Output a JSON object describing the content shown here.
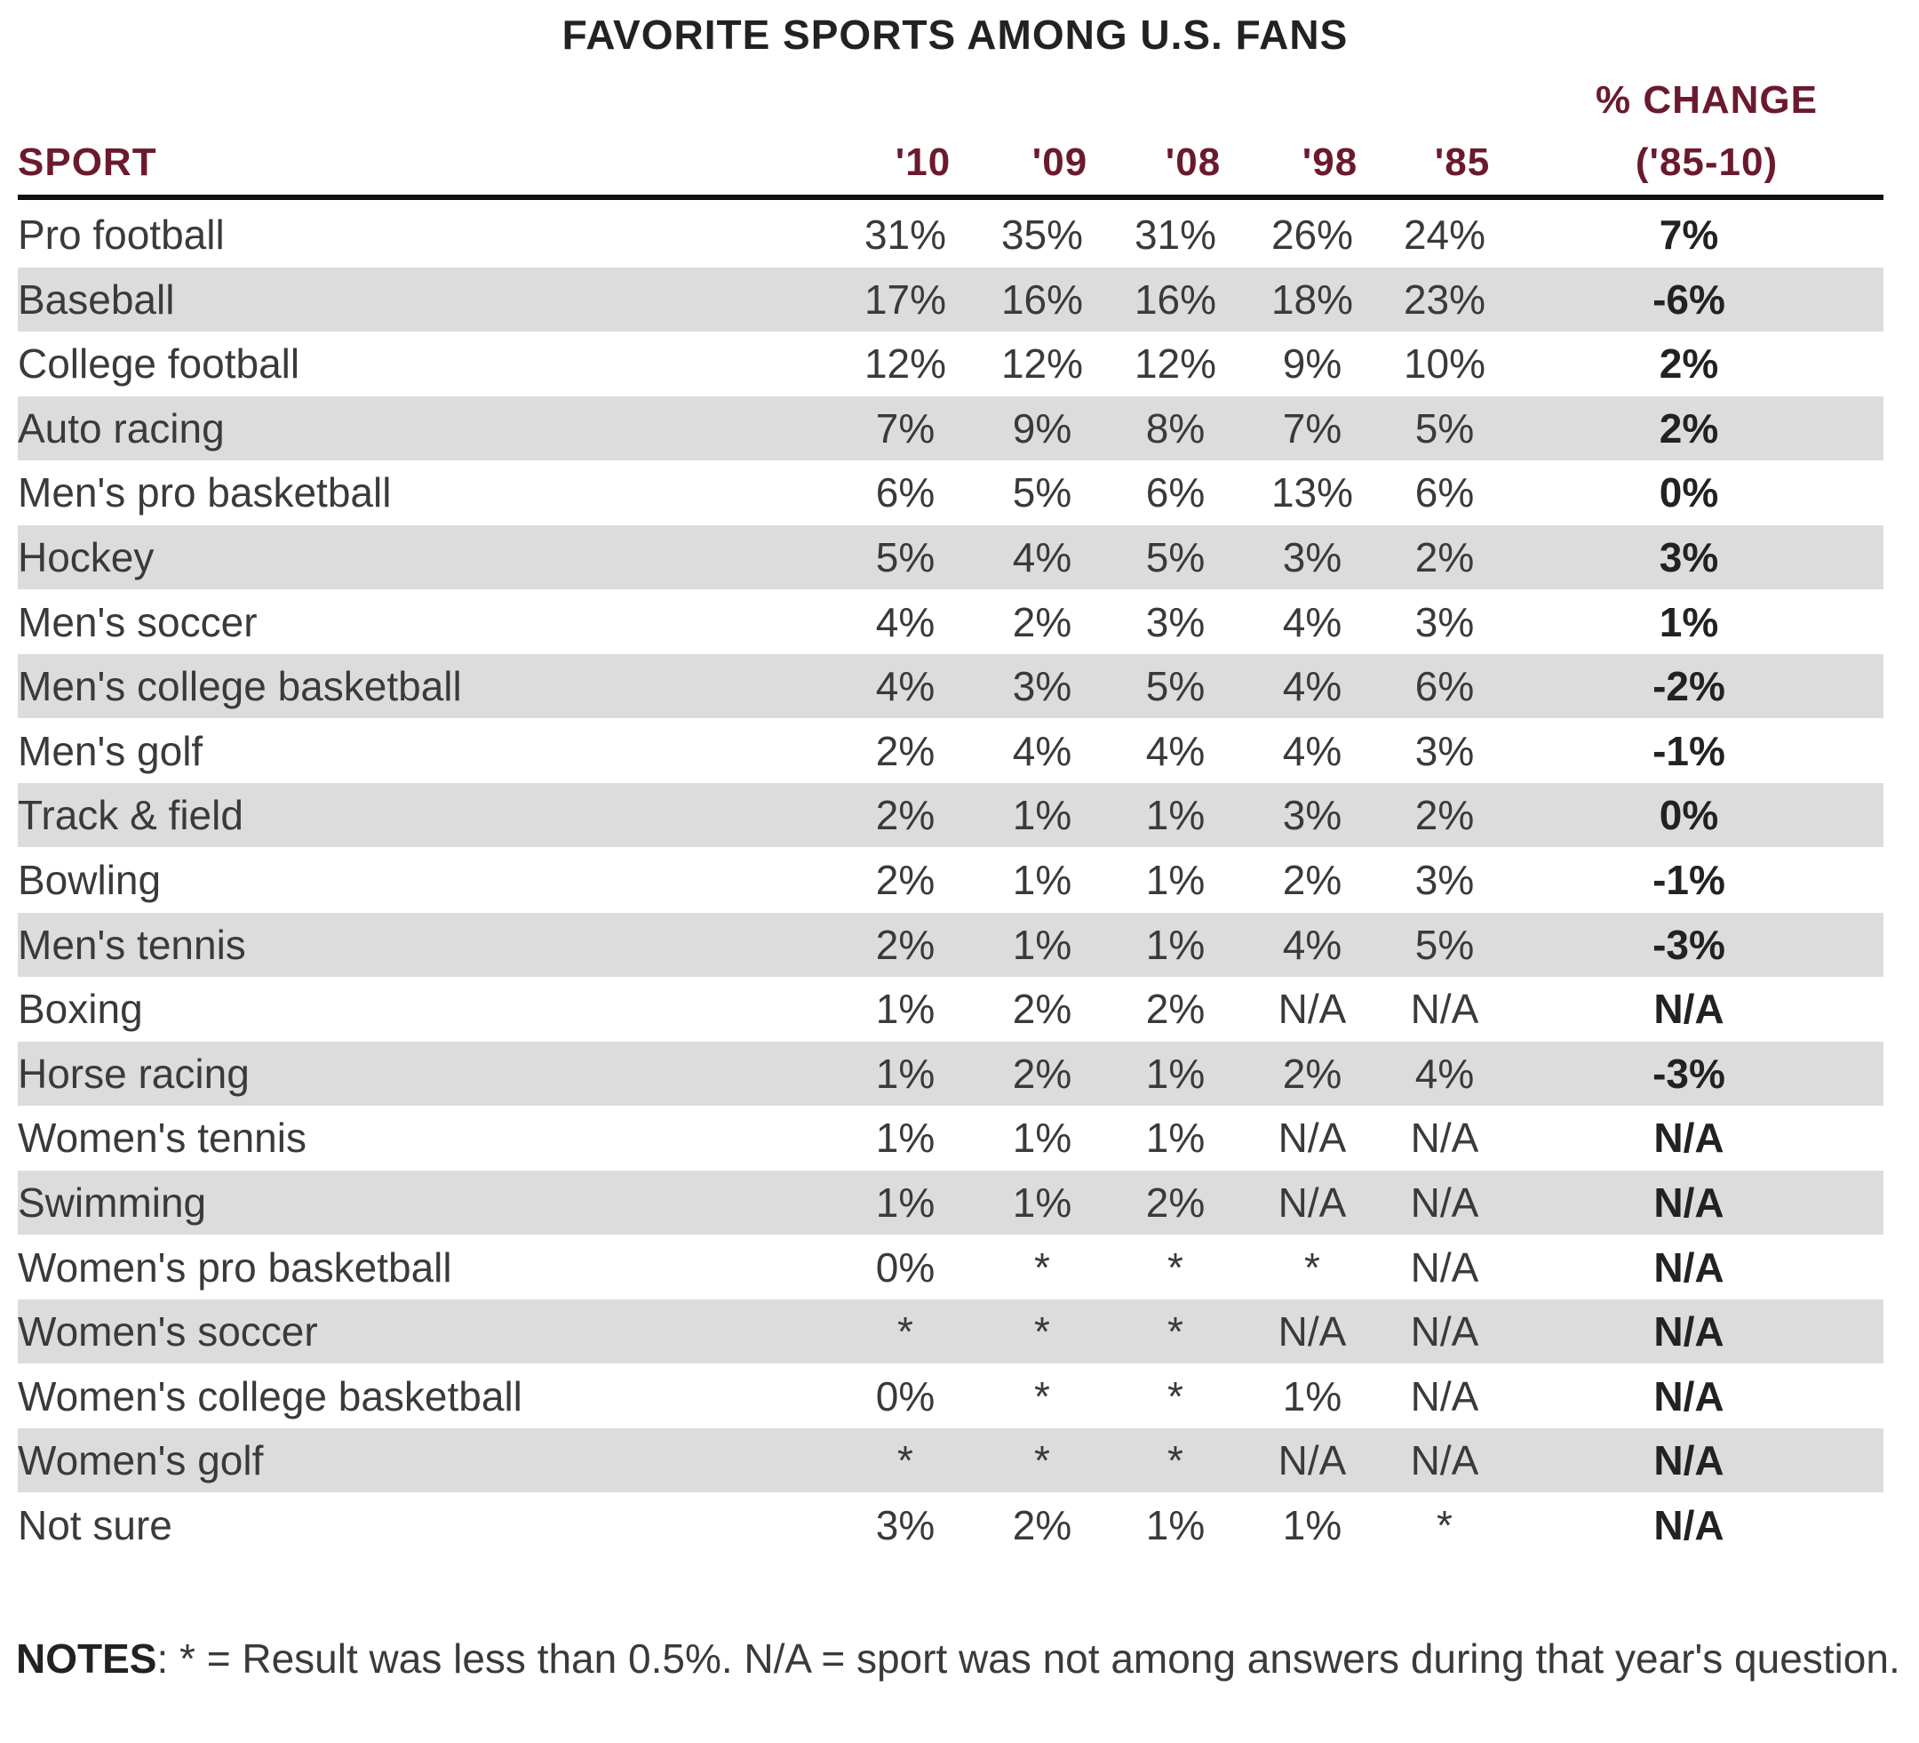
{
  "chart_data": {
    "type": "table",
    "title": "FAVORITE SPORTS AMONG U.S. FANS",
    "columns": [
      "SPORT",
      "'10",
      "'09",
      "'08",
      "'98",
      "'85",
      "% CHANGE",
      "('85-10)"
    ],
    "rows": [
      [
        "Pro football",
        "31%",
        "35%",
        "31%",
        "26%",
        "24%",
        "7%"
      ],
      [
        "Baseball",
        "17%",
        "16%",
        "16%",
        "18%",
        "23%",
        "-6%"
      ],
      [
        "College football",
        "12%",
        "12%",
        "12%",
        "9%",
        "10%",
        "2%"
      ],
      [
        "Auto racing",
        "7%",
        "9%",
        "8%",
        "7%",
        "5%",
        "2%"
      ],
      [
        "Men's pro basketball",
        "6%",
        "5%",
        "6%",
        "13%",
        "6%",
        "0%"
      ],
      [
        "Hockey",
        "5%",
        "4%",
        "5%",
        "3%",
        "2%",
        "3%"
      ],
      [
        "Men's soccer",
        "4%",
        "2%",
        "3%",
        "4%",
        "3%",
        "1%"
      ],
      [
        "Men's college basketball",
        "4%",
        "3%",
        "5%",
        "4%",
        "6%",
        "-2%"
      ],
      [
        "Men's golf",
        "2%",
        "4%",
        "4%",
        "4%",
        "3%",
        "-1%"
      ],
      [
        "Track & field",
        "2%",
        "1%",
        "1%",
        "3%",
        "2%",
        "0%"
      ],
      [
        "Bowling",
        "2%",
        "1%",
        "1%",
        "2%",
        "3%",
        "-1%"
      ],
      [
        "Men's tennis",
        "2%",
        "1%",
        "1%",
        "4%",
        "5%",
        "-3%"
      ],
      [
        "Boxing",
        "1%",
        "2%",
        "2%",
        "N/A",
        "N/A",
        "N/A"
      ],
      [
        "Horse racing",
        "1%",
        "2%",
        "1%",
        "2%",
        "4%",
        "-3%"
      ],
      [
        "Women's tennis",
        "1%",
        "1%",
        "1%",
        "N/A",
        "N/A",
        "N/A"
      ],
      [
        "Swimming",
        "1%",
        "1%",
        "2%",
        "N/A",
        "N/A",
        "N/A"
      ],
      [
        "Women's pro basketball",
        "0%",
        "*",
        "*",
        "*",
        "N/A",
        "N/A"
      ],
      [
        "Women's soccer",
        "*",
        "*",
        "*",
        "N/A",
        "N/A",
        "N/A"
      ],
      [
        "Women's college basketball",
        "0%",
        "*",
        "*",
        "1%",
        "N/A",
        "N/A"
      ],
      [
        "Women's golf",
        "*",
        "*",
        "*",
        "N/A",
        "N/A",
        "N/A"
      ],
      [
        "Not sure",
        "3%",
        "2%",
        "1%",
        "1%",
        "*",
        "N/A"
      ]
    ],
    "notes_label": "NOTES",
    "notes_text": ": * = Result was less than 0.5%. N/A = sport was not among answers during that year's question.",
    "colors": {
      "header": "#6b1a2e",
      "alt_row": "#dcdcdc"
    }
  }
}
